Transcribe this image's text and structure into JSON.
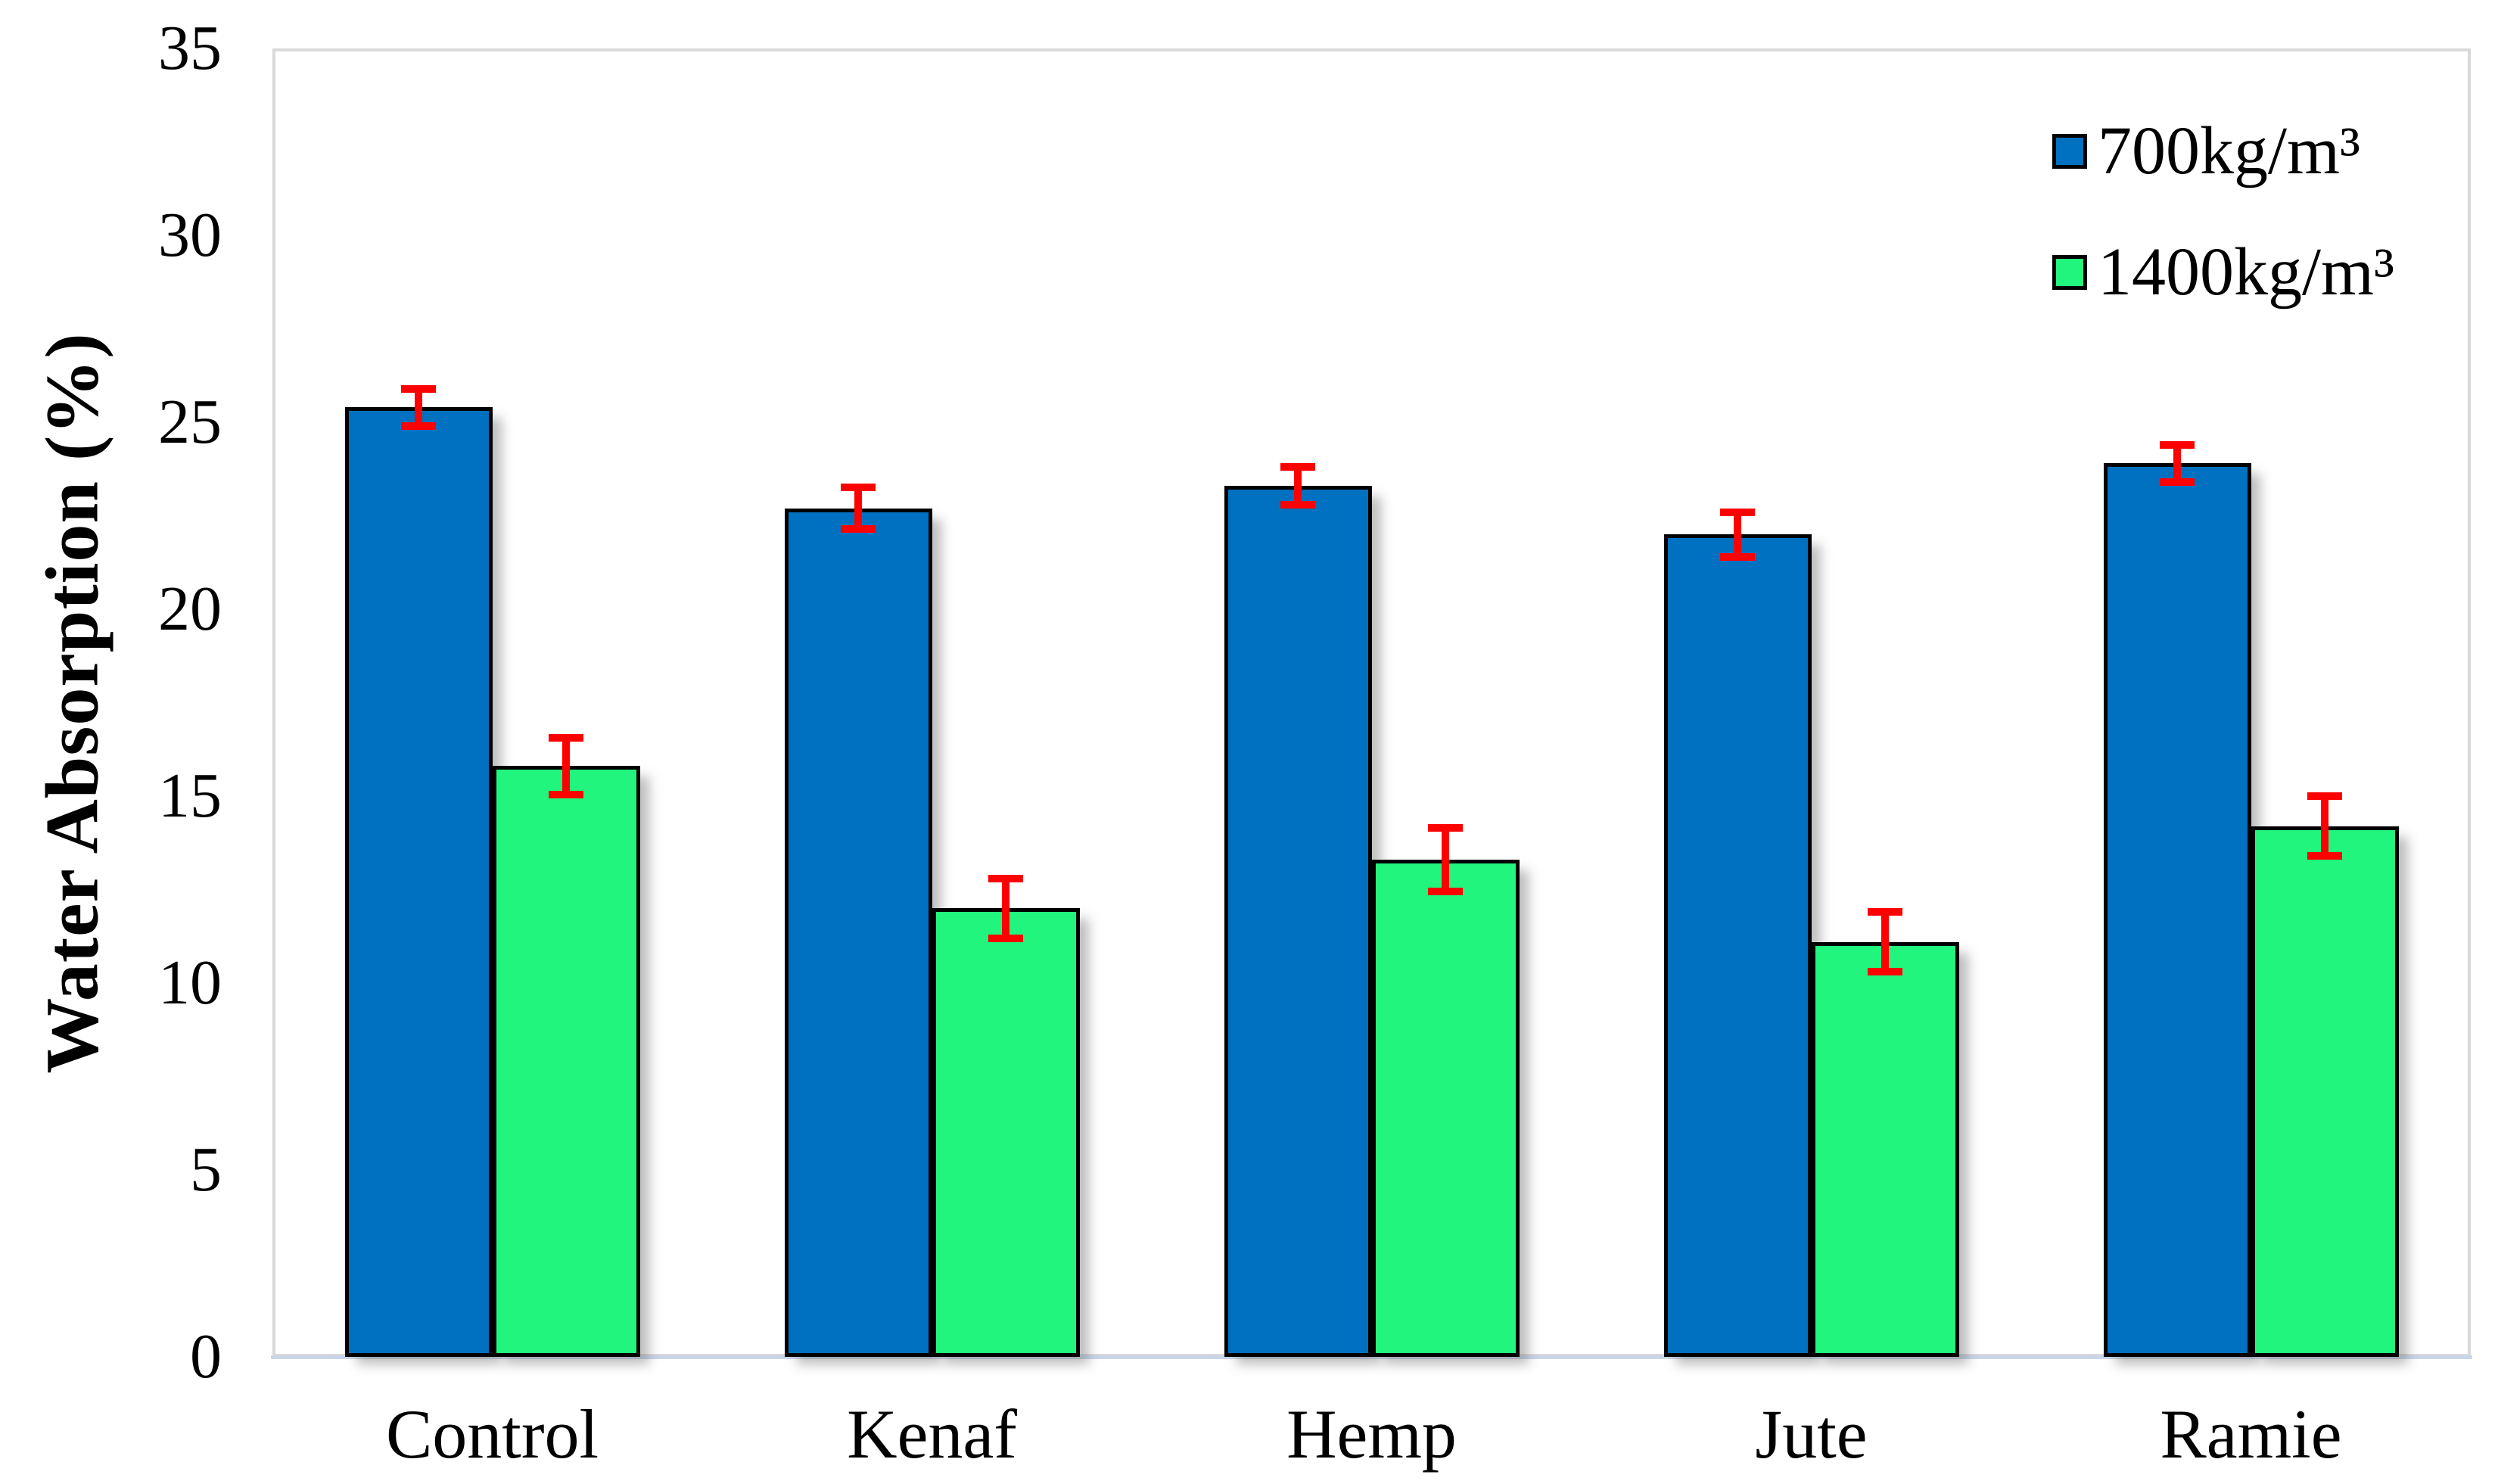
{
  "chart_data": {
    "type": "bar",
    "title": "",
    "xlabel": "",
    "ylabel": "Water Absorption (%)",
    "categories": [
      "Control",
      "Kenaf",
      "Hemp",
      "Jute",
      "Ramie"
    ],
    "series": [
      {
        "name": "700kg/m³",
        "color": "#0070C0",
        "values": [
          25.4,
          22.7,
          23.3,
          22.0,
          23.9
        ],
        "errors": [
          0.5,
          0.55,
          0.5,
          0.6,
          0.5
        ]
      },
      {
        "name": "1400kg/m³",
        "color": "#21F57D",
        "values": [
          15.8,
          12.0,
          13.3,
          11.1,
          14.2
        ],
        "errors": [
          0.75,
          0.8,
          0.85,
          0.8,
          0.8
        ]
      }
    ],
    "ylim": [
      0,
      35
    ],
    "yticks": [
      0,
      5,
      10,
      15,
      20,
      25,
      30,
      35
    ],
    "grid": false,
    "legend_position": "top-right",
    "error_bar_color": "#FF0000",
    "bar_border_color": "#000000",
    "axis_border_color": "#d9d9d9",
    "baseline_color": "#c9d6ea"
  }
}
